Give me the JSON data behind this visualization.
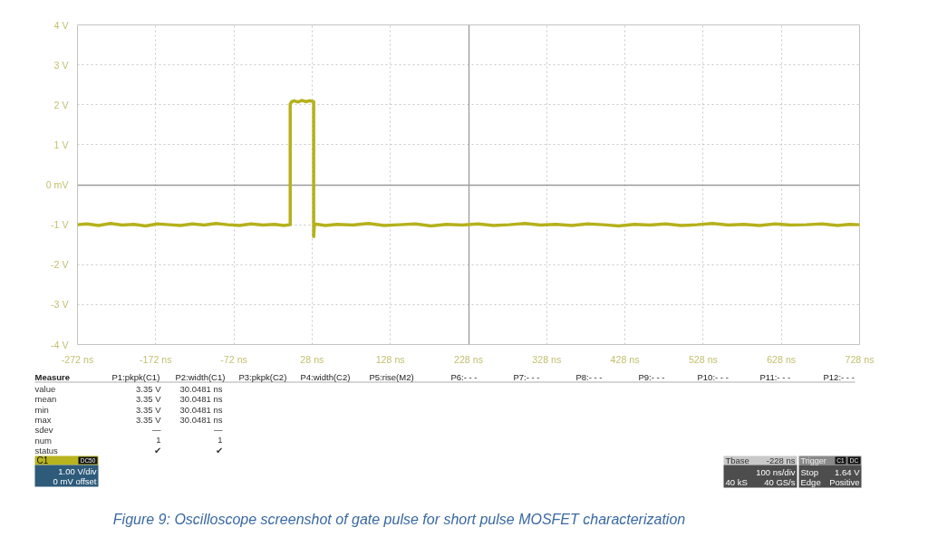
{
  "chart_data": {
    "type": "line",
    "x": [
      -272,
      -260,
      -245,
      -230,
      -215,
      -200,
      -185,
      -170,
      -155,
      -140,
      -125,
      -110,
      -95,
      -80,
      -65,
      -50,
      -35,
      -20,
      -8,
      0,
      0,
      2,
      5,
      10,
      15,
      20,
      25,
      30,
      30,
      31,
      45,
      60,
      80,
      100,
      120,
      140,
      160,
      180,
      200,
      220,
      240,
      260,
      280,
      300,
      320,
      340,
      360,
      380,
      400,
      420,
      440,
      460,
      480,
      500,
      520,
      540,
      560,
      580,
      600,
      620,
      640,
      660,
      680,
      700,
      715,
      728
    ],
    "series": [
      {
        "color": "#b5b11c",
        "values": [
          -1.0,
          -0.98,
          -1.02,
          -0.97,
          -1.01,
          -0.99,
          -1.03,
          -0.98,
          -1.0,
          -1.02,
          -0.98,
          -1.01,
          -0.97,
          -1.0,
          -1.02,
          -0.98,
          -1.01,
          -0.99,
          -1.02,
          -1.0,
          2.02,
          2.08,
          2.1,
          2.07,
          2.11,
          2.08,
          2.1,
          2.08,
          -1.3,
          -0.98,
          -1.02,
          -0.99,
          -1.01,
          -0.97,
          -1.02,
          -1.0,
          -0.98,
          -1.03,
          -0.99,
          -1.01,
          -0.98,
          -1.02,
          -1.0,
          -0.97,
          -1.01,
          -0.99,
          -1.02,
          -0.98,
          -1.0,
          -1.03,
          -0.99,
          -1.01,
          -0.98,
          -1.02,
          -1.0,
          -0.97,
          -1.01,
          -0.99,
          -1.02,
          -0.98,
          -1.01,
          -1.0,
          -0.98,
          -1.02,
          -0.99,
          -1.0
        ]
      }
    ],
    "xlim": [
      -272,
      728
    ],
    "ylim": [
      -4,
      4
    ],
    "xticks": [
      {
        "value": -272,
        "label": "-272 ns"
      },
      {
        "value": -172,
        "label": "-172 ns"
      },
      {
        "value": -72,
        "label": "-72 ns"
      },
      {
        "value": 28,
        "label": "28 ns"
      },
      {
        "value": 128,
        "label": "128 ns"
      },
      {
        "value": 228,
        "label": "228 ns"
      },
      {
        "value": 328,
        "label": "328 ns"
      },
      {
        "value": 428,
        "label": "428 ns"
      },
      {
        "value": 528,
        "label": "528 ns"
      },
      {
        "value": 628,
        "label": "628 ns"
      },
      {
        "value": 728,
        "label": "728 ns"
      }
    ],
    "yticks": [
      {
        "value": -4,
        "label": "-4 V"
      },
      {
        "value": -3,
        "label": "-3 V"
      },
      {
        "value": -2,
        "label": "-2 V"
      },
      {
        "value": -1,
        "label": "-1 V"
      },
      {
        "value": 0,
        "label": "0 mV"
      },
      {
        "value": 1,
        "label": "1 V"
      },
      {
        "value": 2,
        "label": "2 V"
      },
      {
        "value": 3,
        "label": "3 V"
      },
      {
        "value": 4,
        "label": "4 V"
      }
    ],
    "grid": true,
    "line_style": "solid",
    "annotations": [
      "Measure",
      "P1:pkpk(C1)",
      "P2:width(C1)",
      "P3:pkpk(C2)",
      "P4:width(C2)",
      "P5:rise(M2)",
      "P6:- - -",
      "P7:- - -",
      "P8:- - -",
      "P9:- - -",
      "P10:- - -",
      "P11:- - -",
      "P12:- - -",
      "value",
      "3.35 V",
      "30.0481 ns",
      "mean",
      "3.35 V",
      "30.0481 ns",
      "min",
      "3.35 V",
      "30.0481 ns",
      "max",
      "3.35 V",
      "30.0481 ns",
      "sdev",
      "—",
      "—",
      "num",
      "1",
      "1",
      "status",
      "✔",
      "✔",
      "C1",
      "DC50",
      "1.00 V/div",
      "0 mV offset",
      "Tbase",
      "-228 ns",
      "100 ns/div",
      "40 kS",
      "40 GS/s",
      "Trigger",
      "C1",
      "DC",
      "Stop",
      "1.64 V",
      "Edge",
      "Positive",
      "Figure 9: Oscilloscope screenshot of gate pulse for short pulse MOSFET characterization"
    ]
  }
}
